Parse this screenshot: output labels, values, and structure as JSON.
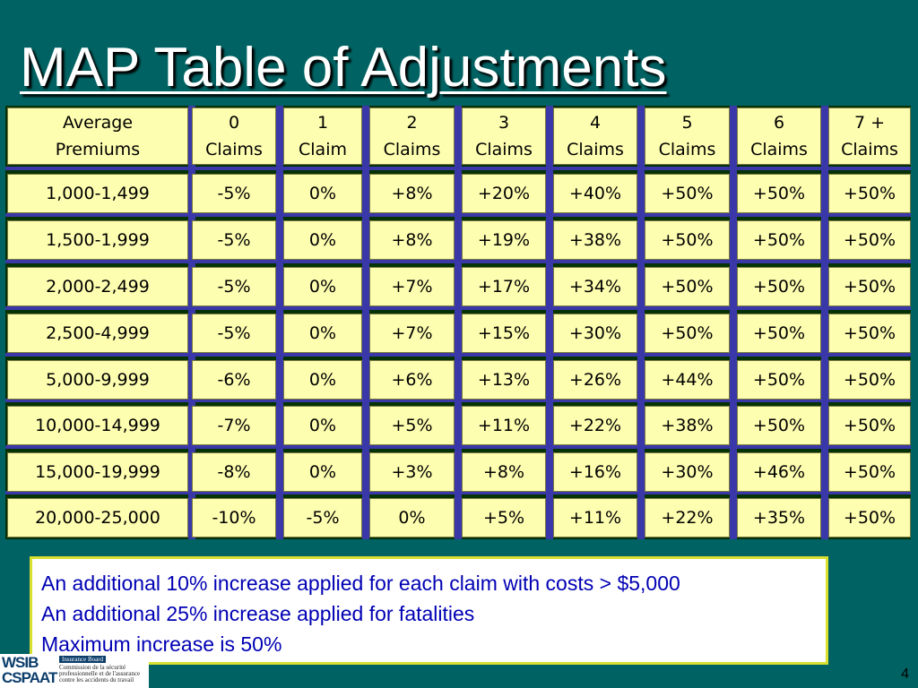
{
  "slide": {
    "title": "MAP Table of Adjustments",
    "page_number": "4"
  },
  "table": {
    "header": [
      [
        "Average",
        "Premiums"
      ],
      [
        "0",
        "Claims"
      ],
      [
        "1",
        "Claim"
      ],
      [
        "2",
        "Claims"
      ],
      [
        "3",
        "Claims"
      ],
      [
        "4",
        "Claims"
      ],
      [
        "5",
        "Claims"
      ],
      [
        "6",
        "Claims"
      ],
      [
        "7 +",
        "Claims"
      ]
    ],
    "rows": [
      [
        "1,000-1,499",
        "-5%",
        "0%",
        "+8%",
        "+20%",
        "+40%",
        "+50%",
        "+50%",
        "+50%"
      ],
      [
        "1,500-1,999",
        "-5%",
        "0%",
        "+8%",
        "+19%",
        "+38%",
        "+50%",
        "+50%",
        "+50%"
      ],
      [
        "2,000-2,499",
        "-5%",
        "0%",
        "+7%",
        "+17%",
        "+34%",
        "+50%",
        "+50%",
        "+50%"
      ],
      [
        "2,500-4,999",
        "-5%",
        "0%",
        "+7%",
        "+15%",
        "+30%",
        "+50%",
        "+50%",
        "+50%"
      ],
      [
        "5,000-9,999",
        "-6%",
        "0%",
        "+6%",
        "+13%",
        "+26%",
        "+44%",
        "+50%",
        "+50%"
      ],
      [
        "10,000-14,999",
        "-7%",
        "0%",
        "+5%",
        "+11%",
        "+22%",
        "+38%",
        "+50%",
        "+50%"
      ],
      [
        "15,000-19,999",
        "-8%",
        "0%",
        "+3%",
        "+8%",
        "+16%",
        "+30%",
        "+46%",
        "+50%"
      ],
      [
        "20,000-25,000",
        "-10%",
        "-5%",
        "0%",
        "+5%",
        "+11%",
        "+22%",
        "+35%",
        "+50%"
      ]
    ]
  },
  "notes": [
    "An additional 10% increase applied for each claim with costs > $5,000",
    "An additional 25% increase applied for fatalities",
    "Maximum increase is 50%"
  ],
  "logo": {
    "mark_top": "WSIB",
    "mark_bottom": "CSPAAT",
    "board_label": "Insurance Board",
    "fr_line1": "Commission de la sécurité",
    "fr_line2": "professionnelle et de l'assurance",
    "fr_line3": "contre les accidents du travail"
  },
  "colors": {
    "background": "#006262",
    "cell_fill": "#fefeb0",
    "separator": "#3a38a8",
    "note_text": "#0000b4",
    "note_border": "#d8e030"
  }
}
